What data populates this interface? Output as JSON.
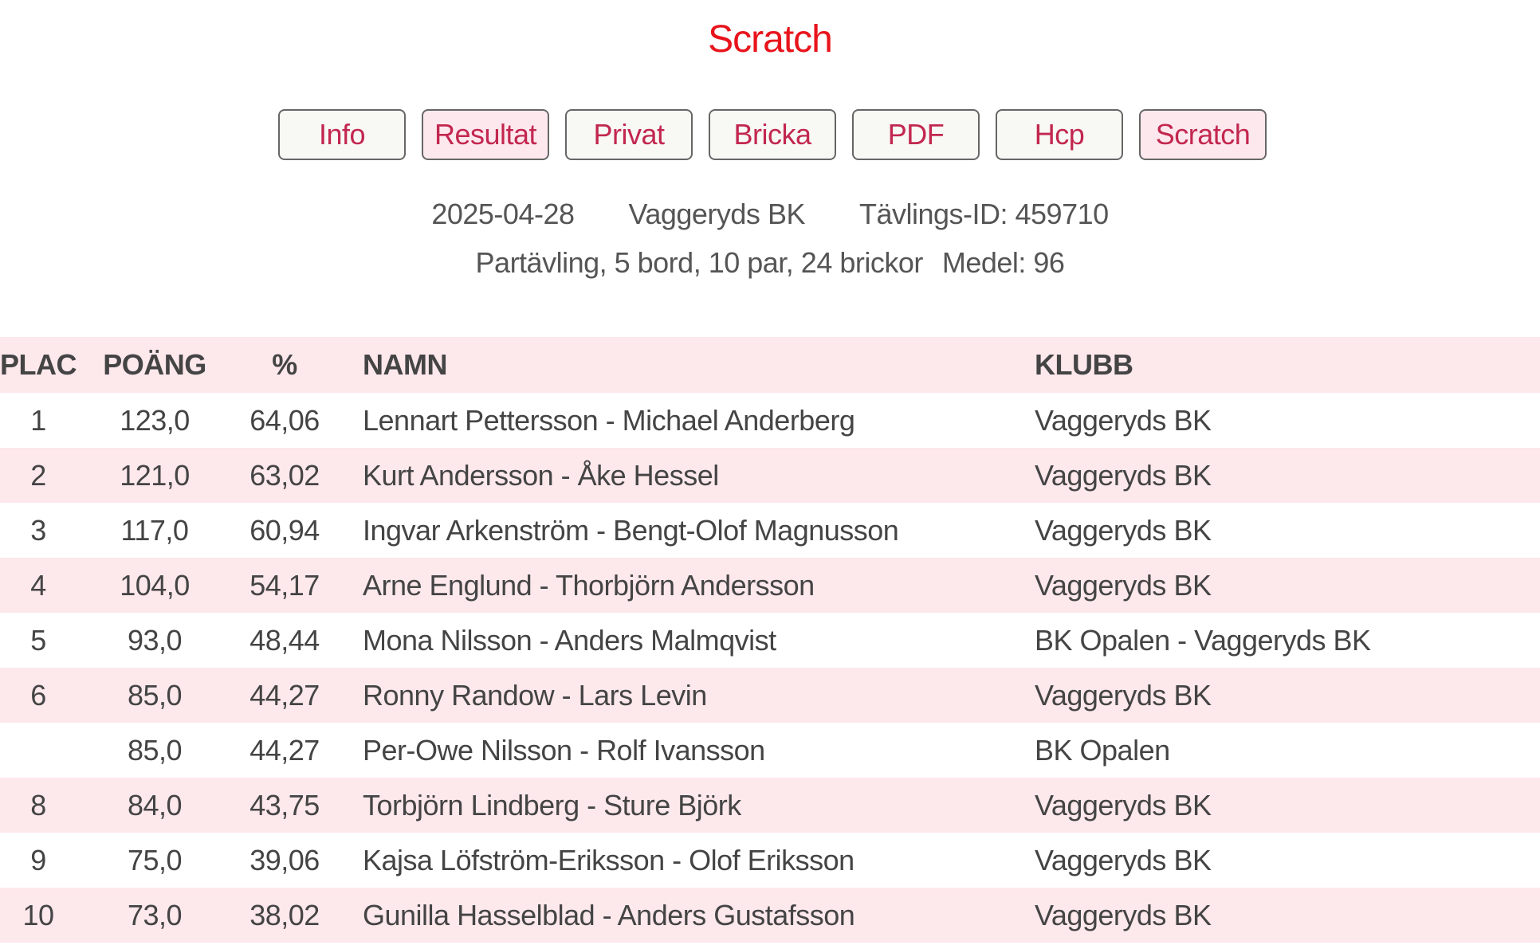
{
  "title": "Scratch",
  "nav": [
    {
      "label": "Info",
      "highlight": false
    },
    {
      "label": "Resultat",
      "highlight": true
    },
    {
      "label": "Privat",
      "highlight": false
    },
    {
      "label": "Bricka",
      "highlight": false
    },
    {
      "label": "PDF",
      "highlight": false
    },
    {
      "label": "Hcp",
      "highlight": false
    },
    {
      "label": "Scratch",
      "highlight": true
    }
  ],
  "info": {
    "date": "2025-04-28",
    "club": "Vaggeryds BK",
    "competition_id": "Tävlings-ID: 459710",
    "details": "Partävling, 5 bord, 10 par, 24 brickor",
    "average": "Medel: 96"
  },
  "table": {
    "headers": [
      "PLAC",
      "POÄNG",
      "%",
      "NAMN",
      "KLUBB"
    ],
    "rows": [
      [
        "1",
        "123,0",
        "64,06",
        "Lennart Pettersson - Michael Anderberg",
        "Vaggeryds BK"
      ],
      [
        "2",
        "121,0",
        "63,02",
        "Kurt Andersson - Åke Hessel",
        "Vaggeryds BK"
      ],
      [
        "3",
        "117,0",
        "60,94",
        "Ingvar Arkenström - Bengt-Olof Magnusson",
        "Vaggeryds BK"
      ],
      [
        "4",
        "104,0",
        "54,17",
        "Arne Englund - Thorbjörn Andersson",
        "Vaggeryds BK"
      ],
      [
        "5",
        "93,0",
        "48,44",
        "Mona Nilsson - Anders Malmqvist",
        "BK Opalen - Vaggeryds BK"
      ],
      [
        "6",
        "85,0",
        "44,27",
        "Ronny Randow - Lars Levin",
        "Vaggeryds BK"
      ],
      [
        "",
        "85,0",
        "44,27",
        "Per-Owe Nilsson - Rolf Ivansson",
        "BK Opalen"
      ],
      [
        "8",
        "84,0",
        "43,75",
        "Torbjörn Lindberg - Sture Björk",
        "Vaggeryds BK"
      ],
      [
        "9",
        "75,0",
        "39,06",
        "Kajsa Löfström-Eriksson - Olof Eriksson",
        "Vaggeryds BK"
      ],
      [
        "10",
        "73,0",
        "38,02",
        "Gunilla Hasselblad - Anders Gustafsson",
        "Vaggeryds BK"
      ]
    ]
  },
  "colors": {
    "title": "#e8141c",
    "button_text": "#c2274f",
    "row_stripe": "#fde8ec"
  }
}
